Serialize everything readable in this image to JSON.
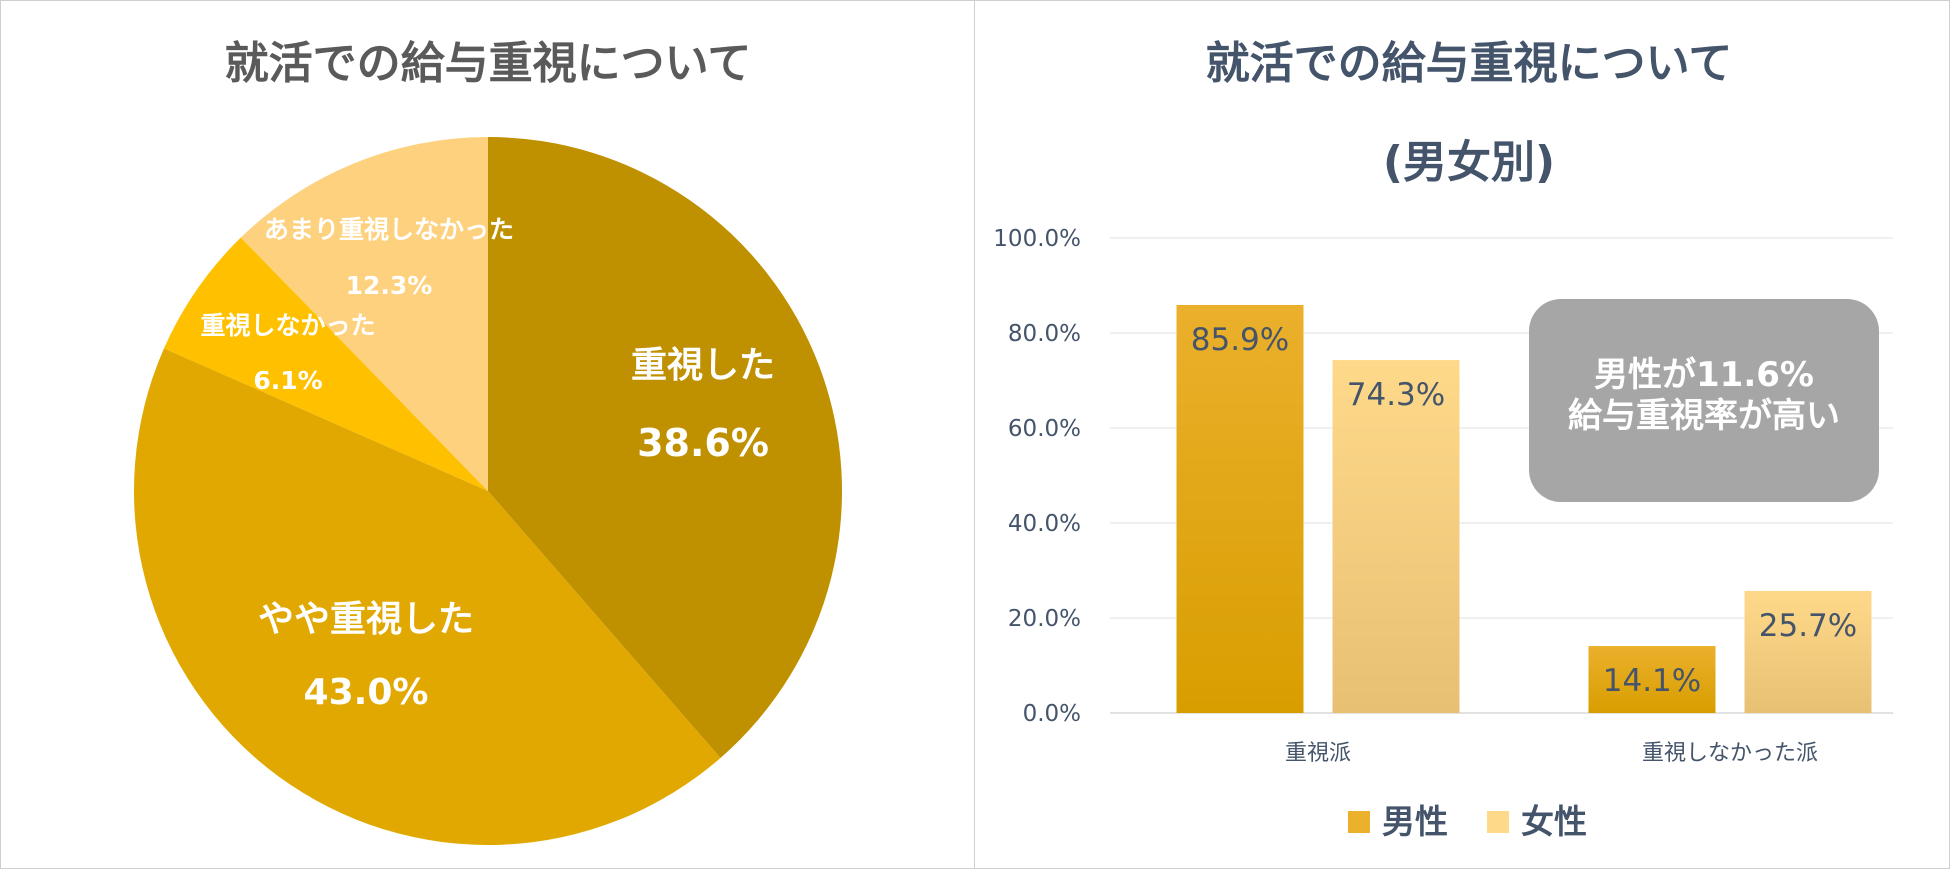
{
  "colors": {
    "pie": [
      "#BF9000",
      "#E0A800",
      "#FFC000",
      "#FED17F"
    ],
    "male_top": "#EBB02C",
    "male_bottom": "#D89E00",
    "female_top": "#FFD98A",
    "female_bottom": "#E8C074",
    "callout_bg": "#A6A6A6"
  },
  "chart_data": [
    {
      "type": "pie",
      "title": "就活での給与重視について",
      "slices": [
        {
          "label": "重視した",
          "value": 38.6,
          "value_label": "38.6%"
        },
        {
          "label": "やや重視した",
          "value": 43.0,
          "value_label": "43.0%"
        },
        {
          "label": "重視しなかった",
          "value": 6.1,
          "value_label": "6.1%"
        },
        {
          "label": "あまり重視しなかった",
          "value": 12.3,
          "value_label": "12.3%"
        }
      ]
    },
    {
      "type": "bar",
      "title": "就活での給与重視について",
      "subtitle": "(男女別)",
      "categories": [
        "重視派",
        "重視しなかった派"
      ],
      "series": [
        {
          "name": "男性",
          "values": [
            85.9,
            14.1
          ],
          "labels": [
            "85.9%",
            "14.1%"
          ]
        },
        {
          "name": "女性",
          "values": [
            74.3,
            25.7
          ],
          "labels": [
            "74.3%",
            "25.7%"
          ]
        }
      ],
      "ylim": [
        0,
        100
      ],
      "yticks": [
        "0.0%",
        "20.0%",
        "40.0%",
        "60.0%",
        "80.0%",
        "100.0%"
      ],
      "grid": true,
      "legend": "bottom",
      "annotation": {
        "line1": "男性が11.6%",
        "line2": "給与重視率が高い"
      }
    }
  ]
}
